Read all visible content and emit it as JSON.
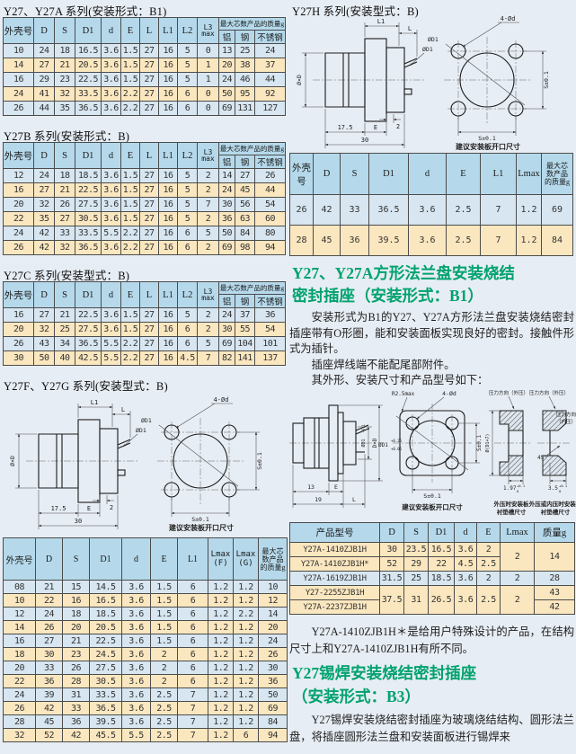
{
  "page": {
    "bg": "#e7edf4",
    "green": "#00a26e",
    "header_blue": "#b5d9eb",
    "row_blue": "#d7e6f1",
    "row_tan": "#fbe7bf"
  },
  "titles": {
    "y27a": "Y27、Y27A 系列(安装形式：B1)",
    "y27b": "Y27B 系列(安装形式：B)",
    "y27c": "Y27C 系列(安装型式：B)",
    "y27fg": "Y27F、Y27G 系列(安装型式：B)",
    "y27h": "Y27H 系列(安装型式：B)"
  },
  "dim_header": {
    "cols": [
      "外壳号",
      "D",
      "S",
      "D1",
      "d",
      "E",
      "L",
      "L1",
      "L2"
    ],
    "l3a": "L3",
    "l3b": "max",
    "weight_group": "最大芯数产品的质量g",
    "weight_cols": [
      "铝",
      "钢",
      "不锈钢"
    ]
  },
  "tables": {
    "y27a_rows": [
      [
        "10",
        "24",
        "18",
        "16.5",
        "3.6",
        "1.5",
        "27",
        "16",
        "5",
        "0",
        "13",
        "25",
        "24"
      ],
      [
        "14",
        "27",
        "21",
        "20.5",
        "3.6",
        "1.5",
        "27",
        "16",
        "5",
        "1",
        "20",
        "38",
        "37"
      ],
      [
        "16",
        "29",
        "23",
        "22.5",
        "3.6",
        "1.5",
        "27",
        "16",
        "5",
        "1",
        "24",
        "46",
        "44"
      ],
      [
        "24",
        "41",
        "32",
        "33.5",
        "3.6",
        "2.2",
        "27",
        "16",
        "6",
        "0",
        "50",
        "95",
        "92"
      ],
      [
        "26",
        "44",
        "35",
        "36.5",
        "3.6",
        "2.2",
        "27",
        "16",
        "6",
        "0",
        "69",
        "131",
        "127"
      ]
    ],
    "y27b_rows": [
      [
        "12",
        "24",
        "18",
        "18.5",
        "3.6",
        "1.5",
        "27",
        "16",
        "5",
        "2",
        "14",
        "27",
        "26"
      ],
      [
        "16",
        "27",
        "21",
        "22.5",
        "3.6",
        "1.5",
        "27",
        "16",
        "5",
        "2",
        "24",
        "45",
        "44"
      ],
      [
        "20",
        "32",
        "26",
        "27.5",
        "3.6",
        "1.5",
        "27",
        "16",
        "5",
        "7",
        "30",
        "56",
        "54"
      ],
      [
        "22",
        "35",
        "27",
        "30.5",
        "3.6",
        "1.5",
        "27",
        "16",
        "5",
        "2",
        "36",
        "63",
        "60"
      ],
      [
        "24",
        "42",
        "33",
        "33.5",
        "5.5",
        "2.2",
        "27",
        "16",
        "6",
        "5",
        "50",
        "84",
        "80"
      ],
      [
        "26",
        "42",
        "32",
        "36.5",
        "3.6",
        "2.2",
        "27",
        "16",
        "6",
        "2",
        "69",
        "98",
        "94"
      ]
    ],
    "y27c_rows": [
      [
        "16",
        "27",
        "21",
        "22.5",
        "3.6",
        "1.5",
        "27",
        "16",
        "5",
        "2",
        "24",
        "37",
        "36"
      ],
      [
        "20",
        "32",
        "25",
        "27.5",
        "3.6",
        "1.5",
        "27",
        "16",
        "6",
        "2",
        "30",
        "55",
        "54"
      ],
      [
        "26",
        "43",
        "34",
        "36.5",
        "5.5",
        "2.2",
        "27",
        "16",
        "6",
        "5",
        "69",
        "104",
        "101"
      ],
      [
        "30",
        "50",
        "40",
        "42.5",
        "5.5",
        "2.2",
        "27",
        "16",
        "4.5",
        "7",
        "82",
        "141",
        "137"
      ]
    ],
    "fg_header": {
      "cols": [
        "外壳号",
        "D",
        "S",
        "D1",
        "d",
        "E",
        "L1"
      ],
      "lmax_f": [
        "Lmax",
        "(F)"
      ],
      "lmax_g": [
        "Lmax",
        "(G)"
      ],
      "weight": [
        "最大芯",
        "数产品",
        "的质量g"
      ]
    },
    "fg_rows": [
      [
        "08",
        "21",
        "15",
        "14.5",
        "3.6",
        "1.5",
        "6",
        "1.2",
        "1.2",
        "10"
      ],
      [
        "10",
        "22",
        "16",
        "16.5",
        "3.6",
        "1.5",
        "6",
        "1.2",
        "1.2",
        "12"
      ],
      [
        "12",
        "24",
        "18",
        "18.5",
        "3.6",
        "1.5",
        "6",
        "1.2",
        "2.2",
        "14"
      ],
      [
        "14",
        "26",
        "20",
        "20.5",
        "3.6",
        "1.5",
        "6",
        "1.2",
        "1.2",
        "20"
      ],
      [
        "16",
        "27",
        "21",
        "22.5",
        "3.6",
        "1.5",
        "6",
        "1.2",
        "1.2",
        "24"
      ],
      [
        "18",
        "30",
        "23",
        "24.5",
        "3.6",
        "2",
        "6",
        "1.2",
        "1.2",
        "26"
      ],
      [
        "20",
        "33",
        "26",
        "27.5",
        "3.6",
        "2",
        "6",
        "1.2",
        "1.2",
        "30"
      ],
      [
        "22",
        "36",
        "28",
        "30.5",
        "3.6",
        "2",
        "6",
        "1.2",
        "1.2",
        "36"
      ],
      [
        "24",
        "39",
        "31",
        "33.5",
        "3.6",
        "2.5",
        "7",
        "1.2",
        "1.2",
        "50"
      ],
      [
        "26",
        "42",
        "33",
        "36.5",
        "3.6",
        "2.5",
        "7",
        "1.2",
        "1.2",
        "69"
      ],
      [
        "28",
        "45",
        "36",
        "39.5",
        "3.6",
        "2.5",
        "7",
        "1.2",
        "1.2",
        "84"
      ],
      [
        "32",
        "52",
        "42",
        "45.5",
        "5.5",
        "2.5",
        "7",
        "1.2",
        "6",
        "94"
      ]
    ],
    "h_header": {
      "cols": [
        "外壳号",
        "D",
        "S",
        "D1",
        "d",
        "E",
        "L1",
        "Lmax"
      ],
      "weight": [
        "最大芯",
        "数产品",
        "的质量g"
      ]
    },
    "h_rows": [
      [
        "26",
        "42",
        "33",
        "36.5",
        "3.6",
        "2.5",
        "7",
        "1.2",
        "69"
      ],
      [
        "28",
        "45",
        "36",
        "39.5",
        "3.6",
        "2.5",
        "7",
        "1.2",
        "84"
      ]
    ],
    "product_header": [
      "产品型号",
      "D",
      "S",
      "D1",
      "d",
      "E",
      "Lmax",
      "质量g"
    ],
    "product_rows": [
      [
        "Y27A-1410ZJB1H",
        "30",
        "23.5",
        "16.5",
        "3.6",
        "2",
        {
          "t": "2",
          "rs": 2
        },
        {
          "t": "14",
          "rs": 2
        }
      ],
      [
        "Y27A-1410ZJB1H*",
        "52",
        "29",
        "22",
        "4.5",
        "2.5"
      ],
      [
        "Y27A-1619ZJB1H",
        "31.5",
        "25",
        "18.5",
        "3.6",
        "2",
        "2",
        "28"
      ],
      [
        "Y27-2255ZJB1H",
        {
          "t": "37.5",
          "rs": 2
        },
        {
          "t": "31",
          "rs": 2
        },
        {
          "t": "26.5",
          "rs": 2
        },
        {
          "t": "3.6",
          "rs": 2
        },
        {
          "t": "2.5",
          "rs": 2
        },
        {
          "t": "2",
          "rs": 2
        },
        "43"
      ],
      [
        "Y27A-2237ZJB1H",
        "42"
      ]
    ],
    "product_row_colors": [
      "tan",
      "tan",
      "blue",
      "tan",
      "tan"
    ]
  },
  "text": {
    "heading_b1": [
      "Y27、Y27A方形法兰盘安装烧结",
      "密封插座（安装形式：B1）"
    ],
    "p1": "安装形式为B1的Y27、Y27A方形法兰盘安装烧结密封插座带有O形圈，能和安装面板实现良好的密封。接触件形式为插针。",
    "p2": "插座焊线端不能配尾部附件。",
    "p3": "其外形、安装尺寸和产品型号如下：",
    "note": "Y27A-1410ZJB1H＊是给用户特殊设计的产品，在结构尺寸上和Y27A-1410ZJB1H有所不同。",
    "heading_b3": [
      "Y27锡焊安装烧结密封插座",
      "（安装形式：B3）"
    ],
    "p4": "Y27锡焊安装烧结密封插座为玻璃烧结结构、圆形法兰盘，将插座圆形法兰盘和安装面板进行锡焊来"
  },
  "drawing": {
    "l1": "L1",
    "l": "L",
    "d1": "ØD1",
    "oxd": "Ø×D",
    "dim175": "17.5",
    "e": "E",
    "dim30": "30",
    "dim2": "2",
    "holes": "4-Ød",
    "s01": "S±0.1",
    "caption": "建议安装板开口尺寸"
  },
  "drawing_b1": {
    "r25": "R2.5max",
    "holes": "4-Ød",
    "d1": "ØD1",
    "d1_sup": "+0.25",
    "d1_sub": "+0.05",
    "d1_side": "ØD1",
    "d1_side_tol": "-0.1",
    "s01": "S±0.1",
    "dim13": "13",
    "dim19": "19",
    "e": "E",
    "l": "L",
    "dxd": "D×D",
    "caption": "建议安装板开口尺寸",
    "press_out": "压力方向（外压）",
    "press_in_1": "压力方向",
    "press_in_2": "（内压）",
    "dd17": "Ø(D1+7)",
    "deg45": "45°",
    "dim197": "1.97",
    "dim35": "3.5",
    "tol_sup": "+0.1",
    "tol_sub": "0",
    "cap1": [
      "外压时安装板",
      "衬垫槽尺寸"
    ],
    "cap2": [
      "外压或内压时安装板",
      "衬垫槽尺寸"
    ]
  }
}
